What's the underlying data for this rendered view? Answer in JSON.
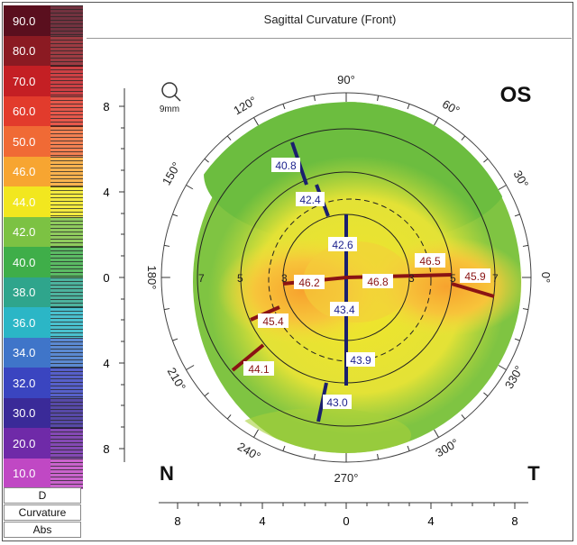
{
  "title": "Sagittal Curvature (Front)",
  "eye": "OS",
  "zoom_label": "9mm",
  "scale": {
    "steps": [
      {
        "label": "90.0",
        "color": "#5a0f1e"
      },
      {
        "label": "80.0",
        "color": "#8b1a22"
      },
      {
        "label": "70.0",
        "color": "#c41f24"
      },
      {
        "label": "60.0",
        "color": "#e23b2c"
      },
      {
        "label": "50.0",
        "color": "#f06a35"
      },
      {
        "label": "46.0",
        "color": "#f7a531"
      },
      {
        "label": "44.0",
        "color": "#f2e71f"
      },
      {
        "label": "42.0",
        "color": "#7cc243"
      },
      {
        "label": "40.0",
        "color": "#3fae49"
      },
      {
        "label": "38.0",
        "color": "#2fa58c"
      },
      {
        "label": "36.0",
        "color": "#2bb6c6"
      },
      {
        "label": "34.0",
        "color": "#3f75c9"
      },
      {
        "label": "32.0",
        "color": "#3a45c0"
      },
      {
        "label": "30.0",
        "color": "#3a2a98"
      },
      {
        "label": "20.0",
        "color": "#6f2aa8"
      },
      {
        "label": "10.0",
        "color": "#c048c4"
      }
    ],
    "unit": "D",
    "map_type": "Curvature",
    "mode": "Abs"
  },
  "axes": {
    "y_ticks": [
      "8",
      "4",
      "0",
      "4",
      "8"
    ],
    "x_ticks": [
      "8",
      "4",
      "0",
      "4",
      "8"
    ]
  },
  "angles": [
    "90°",
    "60°",
    "30°",
    "0°",
    "330°",
    "300°",
    "270°",
    "240°",
    "210°",
    "180°",
    "150°",
    "120°"
  ],
  "orientation": {
    "nasal": "N",
    "temporal": "T"
  },
  "ring_labels": [
    "7",
    "5",
    "3",
    "3",
    "5",
    "7"
  ],
  "readings": {
    "superior": [
      "40.8",
      "42.4",
      "42.6"
    ],
    "center_upper": "43.4",
    "inferior": [
      "43.9",
      "43.0"
    ],
    "nasal_horizontal": "46.2",
    "central_horizontal": "46.8",
    "temporal_upper": "46.5",
    "temporal": "45.9",
    "inferonasal": [
      "45.4",
      "44.1"
    ]
  }
}
